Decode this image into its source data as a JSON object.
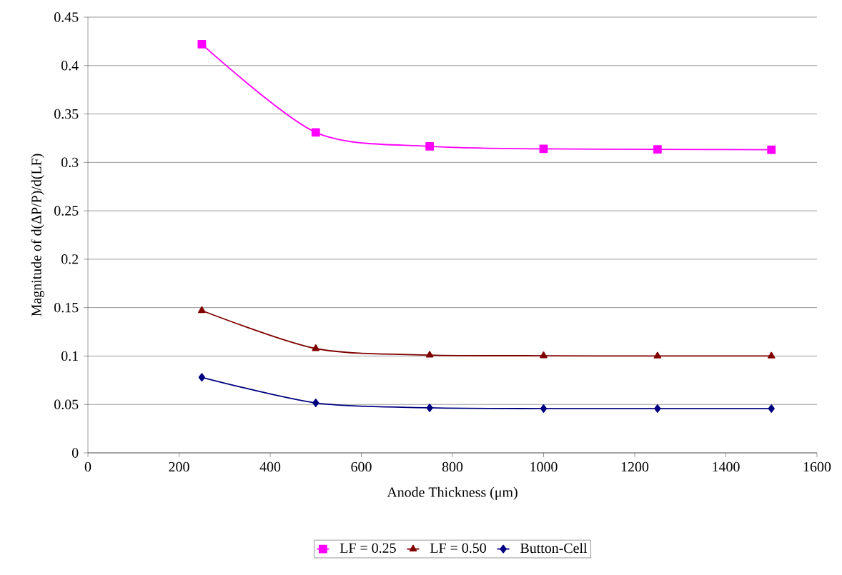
{
  "chart_data": {
    "type": "line",
    "xlabel": "Anode Thickness (μm)",
    "ylabel": "Magnitude of d(ΔP/P)/d(LF)",
    "x": [
      250,
      500,
      750,
      1000,
      1250,
      1500
    ],
    "series": [
      {
        "name": "LF = 0.25",
        "color": "#ff00ff",
        "marker": "square",
        "values": [
          0.422,
          0.331,
          0.3165,
          0.314,
          0.3135,
          0.313
        ]
      },
      {
        "name": "LF = 0.50",
        "color": "#800000",
        "marker": "triangle",
        "values": [
          0.147,
          0.1077,
          0.101,
          0.1003,
          0.1,
          0.1
        ]
      },
      {
        "name": "Button-Cell",
        "color": "#000080",
        "marker": "diamond",
        "values": [
          0.078,
          0.0516,
          0.0465,
          0.0457,
          0.0457,
          0.0457
        ]
      }
    ],
    "xlim": [
      0,
      1600
    ],
    "xticks": [
      0,
      200,
      400,
      600,
      800,
      1000,
      1200,
      1400,
      1600
    ],
    "ylim": [
      0,
      0.45
    ],
    "yticks": [
      0,
      0.05,
      0.1,
      0.15,
      0.2,
      0.25,
      0.3,
      0.35,
      0.4,
      0.45
    ],
    "grid": "y",
    "legend": "bottom",
    "line_style": "solid"
  }
}
